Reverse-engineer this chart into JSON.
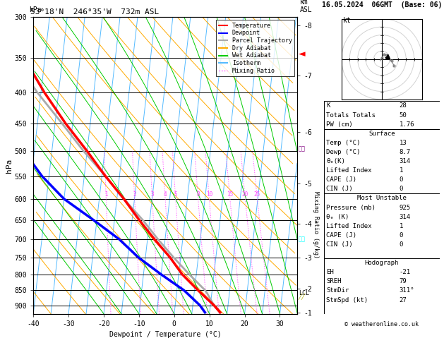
{
  "title_left": "53°18'N  246°35'W  732m ASL",
  "title_right": "16.05.2024  06GMT  (Base: 06)",
  "xlabel": "Dewpoint / Temperature (°C)",
  "ylabel_left": "hPa",
  "pressure_ticks": [
    300,
    350,
    400,
    450,
    500,
    550,
    600,
    650,
    700,
    750,
    800,
    850,
    900
  ],
  "temp_ticks": [
    -40,
    -30,
    -20,
    -10,
    0,
    10,
    20,
    30
  ],
  "pmin": 300,
  "pmax": 930,
  "tmin": -40,
  "tmax": 35,
  "skew": 8.5,
  "km_ticks": [
    8,
    7,
    6,
    5,
    4,
    3,
    2,
    1
  ],
  "km_pressures": [
    310,
    375,
    465,
    565,
    660,
    750,
    845,
    925
  ],
  "lcl_pressure": 860,
  "background_color": "#ffffff",
  "isotherm_color": "#55bbff",
  "dry_adiabat_color": "#ffaa00",
  "wet_adiabat_color": "#00cc00",
  "mixing_ratio_color": "#ff44ff",
  "temperature_color": "#ff0000",
  "dewpoint_color": "#0000ff",
  "parcel_color": "#aaaaaa",
  "legend_items": [
    "Temperature",
    "Dewpoint",
    "Parcel Trajectory",
    "Dry Adiabat",
    "Wet Adiabat",
    "Isotherm",
    "Mixing Ratio"
  ],
  "legend_colors": [
    "#ff0000",
    "#0000ff",
    "#aaaaaa",
    "#ffaa00",
    "#00cc00",
    "#55bbff",
    "#ff44ff"
  ],
  "legend_styles": [
    "solid",
    "solid",
    "solid",
    "solid",
    "solid",
    "solid",
    "dotted"
  ],
  "mixing_ratios_g": [
    1,
    2,
    3,
    4,
    5,
    8,
    10,
    15,
    20,
    25
  ],
  "stats": {
    "K": 28,
    "Totals_Totals": 50,
    "PW_cm": 1.76,
    "Surface": {
      "Temp_C": 13,
      "Dewp_C": 8.7,
      "theta_e_K": 314,
      "Lifted_Index": 1,
      "CAPE_J": 0,
      "CIN_J": 0
    },
    "Most_Unstable": {
      "Pressure_mb": 925,
      "theta_e_K": 314,
      "Lifted_Index": 1,
      "CAPE_J": 0,
      "CIN_J": 0
    },
    "Hodograph": {
      "EH": -21,
      "SREH": 79,
      "StmDir": "311°",
      "StmSpd_kt": 27
    }
  },
  "temp_profile": {
    "pressure": [
      925,
      900,
      850,
      800,
      750,
      700,
      650,
      600,
      550,
      500,
      450,
      400,
      350,
      300
    ],
    "temperature": [
      13,
      11,
      6,
      1,
      -3,
      -8,
      -13,
      -18,
      -24,
      -30,
      -37,
      -44,
      -51,
      -57
    ]
  },
  "dewp_profile": {
    "pressure": [
      925,
      900,
      850,
      800,
      750,
      700,
      650,
      600,
      550,
      500,
      450,
      400,
      350,
      300
    ],
    "temperature": [
      8.7,
      7,
      2,
      -5,
      -12,
      -18,
      -26,
      -35,
      -42,
      -48,
      -54,
      -58,
      -62,
      -66
    ]
  },
  "parcel_profile": {
    "pressure": [
      925,
      900,
      860,
      850,
      800,
      750,
      700,
      650,
      600,
      550,
      500,
      450,
      400,
      350,
      300
    ],
    "temperature": [
      13,
      11,
      8.7,
      8,
      3,
      -2,
      -7,
      -12,
      -18,
      -24,
      -31,
      -38,
      -46,
      -54,
      -62
    ]
  },
  "wind_barbs": [
    {
      "pressure": 345,
      "color": "#ff0000",
      "type": "arrow_left"
    },
    {
      "pressure": 500,
      "color": "#aa00aa",
      "type": "barb"
    },
    {
      "pressure": 700,
      "color": "#00aaff",
      "type": "barb"
    },
    {
      "pressure": 860,
      "color": "#aaaa00",
      "type": "barb"
    }
  ]
}
